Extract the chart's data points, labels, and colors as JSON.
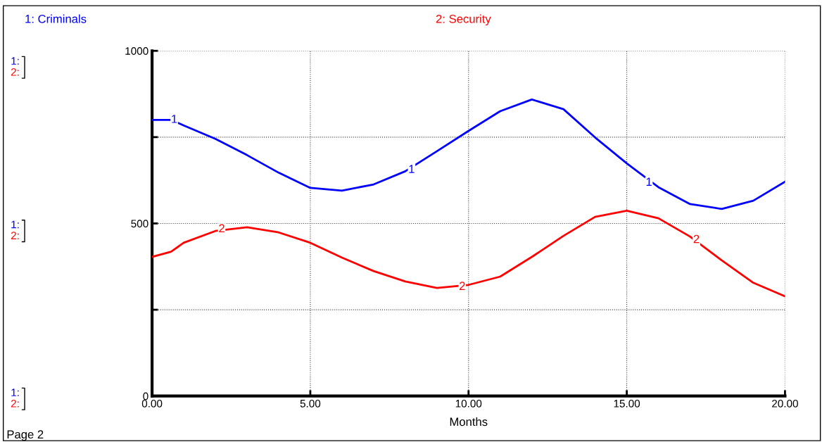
{
  "chart_data": {
    "type": "line",
    "xlabel": "Months",
    "legend": "top",
    "x": [
      0,
      0.6,
      1,
      2,
      3,
      4,
      5,
      6,
      7,
      8,
      9,
      10,
      11,
      12,
      13,
      14,
      15,
      16,
      17,
      18,
      19,
      20
    ],
    "series": [
      {
        "name": "1: Criminals",
        "color": "#0000ff",
        "values": [
          800,
          800,
          784,
          745,
          698,
          647,
          603,
          595,
          613,
          651,
          709,
          768,
          825,
          859,
          831,
          749,
          674,
          605,
          556,
          542,
          566,
          621
        ]
      },
      {
        "name": "2: Security",
        "color": "#ff0000",
        "values": [
          403,
          418,
          444,
          478,
          489,
          474,
          444,
          401,
          362,
          332,
          313,
          322,
          346,
          403,
          464,
          519,
          537,
          515,
          462,
          393,
          328,
          289
        ]
      }
    ],
    "xlim": [
      0,
      20
    ],
    "ylim": [
      0,
      1000
    ],
    "xticks": [
      {
        "value": 0,
        "label": "0.00"
      },
      {
        "value": 5,
        "label": "5.00"
      },
      {
        "value": 10,
        "label": "10.00"
      },
      {
        "value": 15,
        "label": "15.00"
      },
      {
        "value": 20,
        "label": "20.00"
      }
    ],
    "yticks": [
      0,
      {
        "value": 250,
        "label": null
      },
      500,
      {
        "value": 750,
        "label": null
      },
      1000
    ],
    "grid": true,
    "line_style": "solid",
    "marker": "none",
    "annotations": [
      {
        "text": "1",
        "x": 0.7,
        "y": 800
      },
      {
        "text": "1",
        "x": 8.2,
        "y": 655
      },
      {
        "text": "1",
        "x": 15.7,
        "y": 618
      },
      {
        "text": "2",
        "x": 2.2,
        "y": 483
      },
      {
        "text": "2",
        "x": 9.8,
        "y": 316
      },
      {
        "text": "2",
        "x": 17.2,
        "y": 452
      },
      "1:",
      "2:",
      "1:",
      "2:",
      "1:",
      "2:",
      "Page 2"
    ]
  }
}
